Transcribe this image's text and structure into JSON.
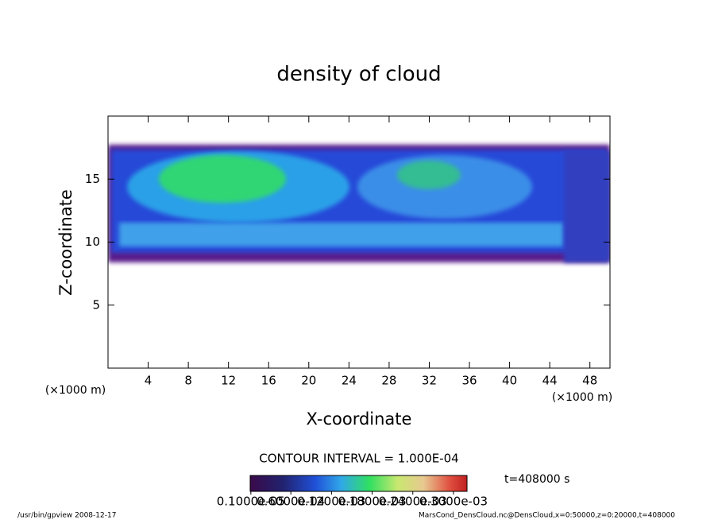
{
  "chart_data": {
    "type": "contour",
    "title": "density of cloud",
    "x_label": "X-coordinate",
    "y_label": "Z-coordinate",
    "x_unit": "(×1000 m)",
    "xlim": [
      0,
      50
    ],
    "xticks": [
      4,
      8,
      12,
      16,
      20,
      24,
      28,
      32,
      36,
      40,
      44,
      48
    ],
    "ylim": [
      0,
      20
    ],
    "yticks": [
      5,
      10,
      15
    ],
    "contour_interval": "CONTOUR INTERVAL = 1.000E-04",
    "time": "t=408000 s",
    "colorbar_lim": [
      0,
      0.00032
    ],
    "colorbar_ticks": [
      {
        "value": 1e-06,
        "label": "0.1000e-05"
      },
      {
        "value": 6e-05,
        "label": "0.6000e-04"
      },
      {
        "value": 0.00012,
        "label": "0.1200e-03"
      },
      {
        "value": 0.00018,
        "label": "0.1800e-03"
      },
      {
        "value": 0.00024,
        "label": "0.2400e-03"
      },
      {
        "value": 0.0003,
        "label": "0.3000e-03"
      }
    ],
    "footer_left": "/usr/bin/gpview   2008-12-17",
    "footer_right": "MarsCond_DensCloud.nc@DensCloud,x=0:50000,z=0:20000,t=408000"
  }
}
